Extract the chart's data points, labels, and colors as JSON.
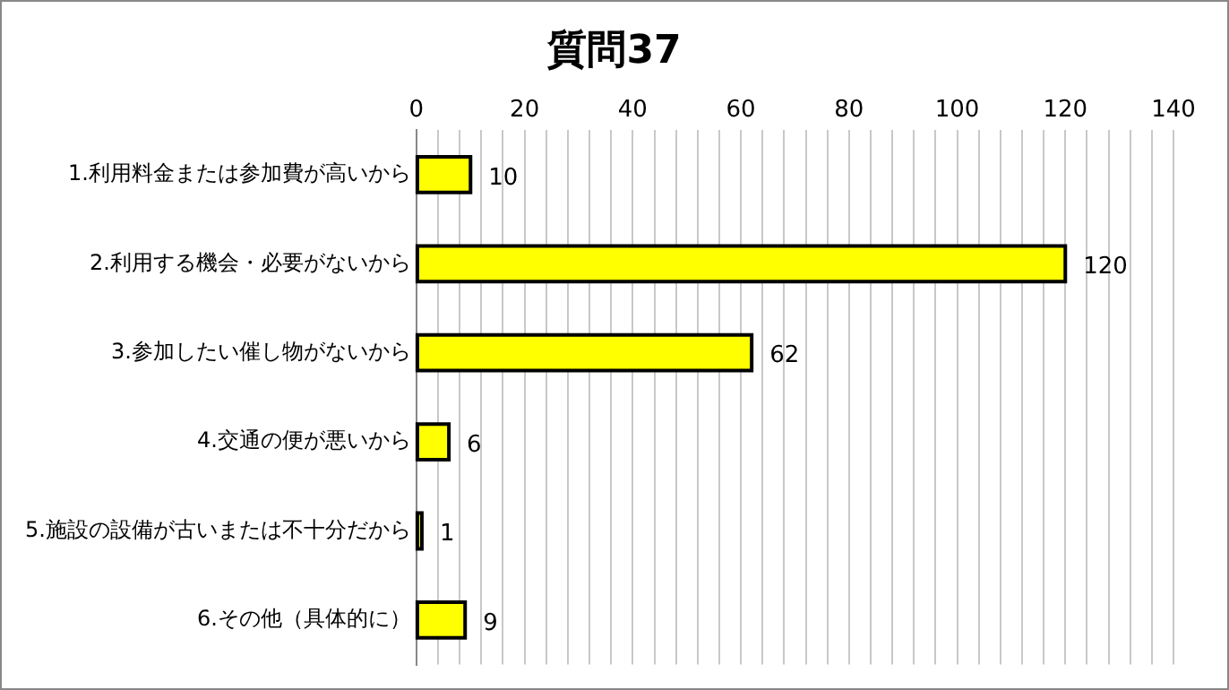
{
  "chart_data": {
    "type": "bar",
    "orientation": "horizontal",
    "title": "質問37",
    "categories": [
      "1.利用料金または参加費が高いから",
      "2.利用する機会・必要がないから",
      "3.参加したい催し物がないから",
      "4.交通の便が悪いから",
      "5.施設の設備が古いまたは不十分だから",
      "6.その他（具体的に）"
    ],
    "values": [
      10,
      120,
      62,
      6,
      1,
      9
    ],
    "color": "#ffff00",
    "xlim": [
      0,
      140
    ],
    "xticks": [
      0,
      {
        "value": 4,
        "label": null
      },
      {
        "value": 8,
        "label": null
      },
      {
        "value": 12,
        "label": null
      },
      {
        "value": 16,
        "label": null
      },
      20,
      {
        "value": 24,
        "label": null
      },
      {
        "value": 28,
        "label": null
      },
      {
        "value": 32,
        "label": null
      },
      {
        "value": 36,
        "label": null
      },
      40,
      {
        "value": 44,
        "label": null
      },
      {
        "value": 48,
        "label": null
      },
      {
        "value": 52,
        "label": null
      },
      {
        "value": 56,
        "label": null
      },
      60,
      {
        "value": 64,
        "label": null
      },
      {
        "value": 68,
        "label": null
      },
      {
        "value": 72,
        "label": null
      },
      {
        "value": 76,
        "label": null
      },
      80,
      {
        "value": 84,
        "label": null
      },
      {
        "value": 88,
        "label": null
      },
      {
        "value": 92,
        "label": null
      },
      {
        "value": 96,
        "label": null
      },
      100,
      {
        "value": 104,
        "label": null
      },
      {
        "value": 108,
        "label": null
      },
      {
        "value": 112,
        "label": null
      },
      {
        "value": 116,
        "label": null
      },
      120,
      {
        "value": 124,
        "label": null
      },
      {
        "value": 128,
        "label": null
      },
      {
        "value": 132,
        "label": null
      },
      {
        "value": 136,
        "label": null
      },
      140
    ],
    "grid": "x",
    "data_labels": true
  }
}
